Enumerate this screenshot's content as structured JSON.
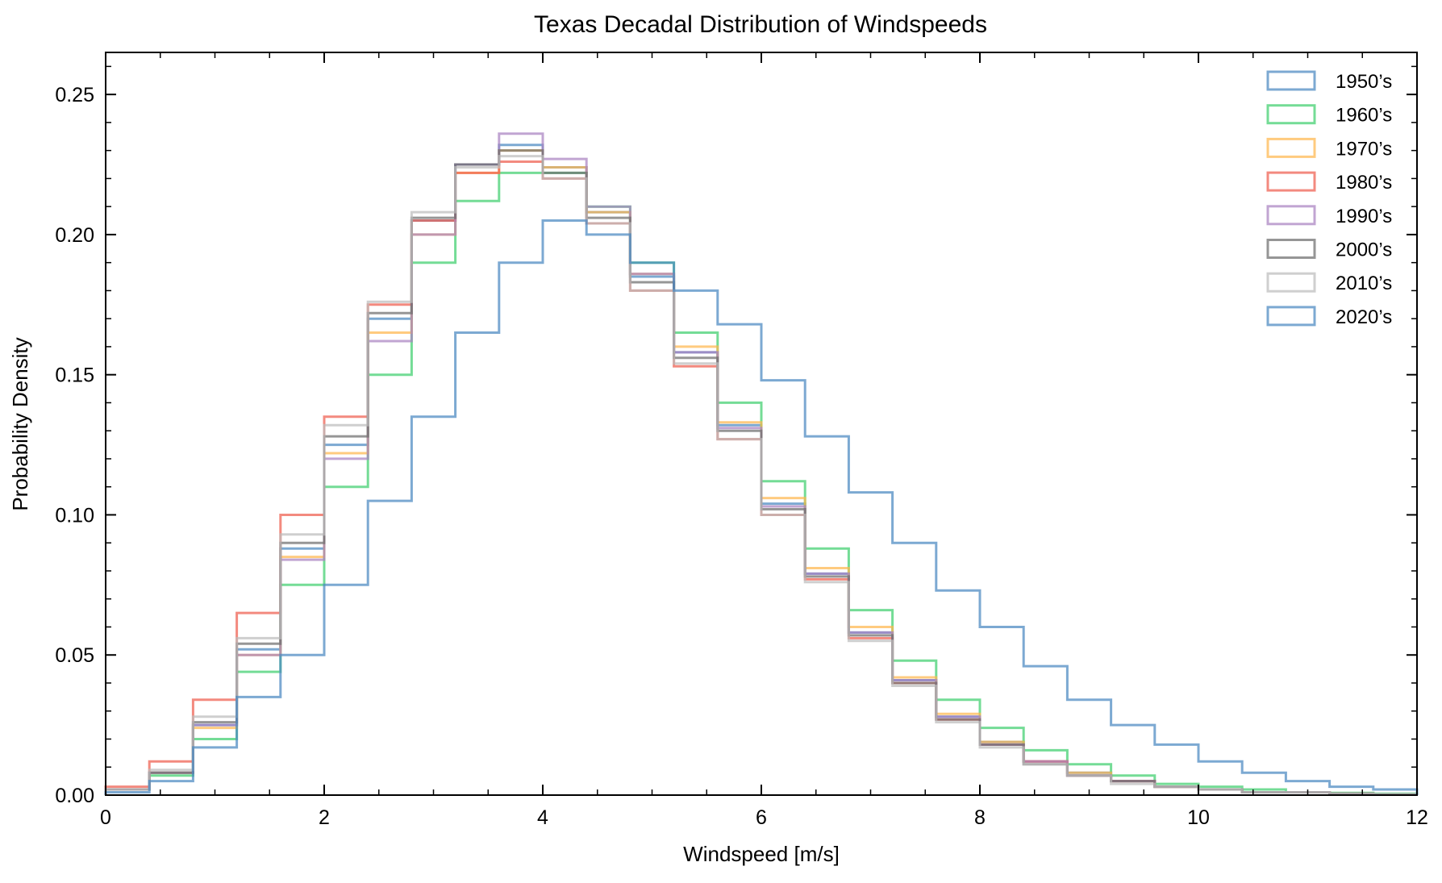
{
  "chart_data": {
    "type": "histogram",
    "title": "Texas Decadal Distribution of Windspeeds",
    "xlabel": "Windspeed [m/s]",
    "ylabel": "Probability Density",
    "xlim": [
      0,
      12
    ],
    "ylim": [
      0,
      0.265
    ],
    "xticks": [
      0,
      2,
      4,
      6,
      8,
      10,
      12
    ],
    "xtick_labels": [
      "0",
      "2",
      "4",
      "6",
      "8",
      "10",
      "12"
    ],
    "yticks": [
      0.0,
      0.05,
      0.1,
      0.15,
      0.2,
      0.25
    ],
    "ytick_labels": [
      "0.00",
      "0.05",
      "0.10",
      "0.15",
      "0.20",
      "0.25"
    ],
    "histtype": "step",
    "grid": false,
    "legend_position": "top-right",
    "x": [
      0.0,
      0.4,
      0.8,
      1.2,
      1.6,
      2.0,
      2.4,
      2.8,
      3.2,
      3.6,
      4.0,
      4.4,
      4.8,
      5.2,
      5.6,
      6.0,
      6.4,
      6.8,
      7.2,
      7.6,
      8.0,
      8.4,
      8.8,
      9.2,
      9.6,
      10.0,
      10.4,
      10.8,
      11.2,
      11.6,
      12.0
    ],
    "series": [
      {
        "name": "1950’s",
        "color": "#4a88c0",
        "values": [
          0.002,
          0.008,
          0.025,
          0.052,
          0.088,
          0.125,
          0.17,
          0.205,
          0.225,
          0.232,
          0.224,
          0.208,
          0.185,
          0.158,
          0.132,
          0.104,
          0.079,
          0.058,
          0.041,
          0.028,
          0.019,
          0.012,
          0.008,
          0.005,
          0.003,
          0.002,
          0.001,
          0.001,
          0.0005,
          0.0003,
          0.0002
        ]
      },
      {
        "name": "1960’s",
        "color": "#3ecf6e",
        "values": [
          0.002,
          0.007,
          0.02,
          0.044,
          0.075,
          0.11,
          0.15,
          0.19,
          0.212,
          0.222,
          0.222,
          0.21,
          0.19,
          0.165,
          0.14,
          0.112,
          0.088,
          0.066,
          0.048,
          0.034,
          0.024,
          0.016,
          0.011,
          0.007,
          0.004,
          0.003,
          0.002,
          0.001,
          0.0008,
          0.0005,
          0.0003
        ]
      },
      {
        "name": "1970’s",
        "color": "#ffb74d",
        "values": [
          0.002,
          0.008,
          0.024,
          0.05,
          0.085,
          0.122,
          0.165,
          0.2,
          0.222,
          0.23,
          0.224,
          0.208,
          0.186,
          0.16,
          0.133,
          0.106,
          0.081,
          0.06,
          0.042,
          0.029,
          0.019,
          0.012,
          0.008,
          0.005,
          0.003,
          0.002,
          0.001,
          0.001,
          0.0005,
          0.0003,
          0.0002
        ]
      },
      {
        "name": "1980’s",
        "color": "#ef5d4e",
        "values": [
          0.003,
          0.012,
          0.034,
          0.065,
          0.1,
          0.135,
          0.175,
          0.205,
          0.222,
          0.226,
          0.22,
          0.204,
          0.18,
          0.153,
          0.127,
          0.1,
          0.077,
          0.056,
          0.04,
          0.027,
          0.018,
          0.012,
          0.007,
          0.005,
          0.003,
          0.002,
          0.001,
          0.001,
          0.0005,
          0.0003,
          0.0002
        ]
      },
      {
        "name": "1990’s",
        "color": "#a982c0",
        "values": [
          0.002,
          0.008,
          0.025,
          0.05,
          0.084,
          0.12,
          0.162,
          0.2,
          0.225,
          0.236,
          0.227,
          0.21,
          0.186,
          0.158,
          0.131,
          0.103,
          0.079,
          0.058,
          0.041,
          0.028,
          0.018,
          0.012,
          0.007,
          0.005,
          0.003,
          0.002,
          0.001,
          0.001,
          0.0005,
          0.0003,
          0.0002
        ]
      },
      {
        "name": "2000’s",
        "color": "#6e6e6e",
        "values": [
          0.002,
          0.008,
          0.026,
          0.054,
          0.09,
          0.128,
          0.172,
          0.206,
          0.225,
          0.23,
          0.222,
          0.206,
          0.183,
          0.156,
          0.13,
          0.102,
          0.078,
          0.057,
          0.04,
          0.027,
          0.018,
          0.011,
          0.007,
          0.005,
          0.003,
          0.002,
          0.001,
          0.001,
          0.0005,
          0.0003,
          0.0002
        ]
      },
      {
        "name": "2010’s",
        "color": "#bdbdbd",
        "values": [
          0.002,
          0.009,
          0.028,
          0.056,
          0.093,
          0.132,
          0.176,
          0.208,
          0.224,
          0.228,
          0.22,
          0.204,
          0.18,
          0.154,
          0.127,
          0.1,
          0.076,
          0.055,
          0.039,
          0.026,
          0.017,
          0.011,
          0.007,
          0.004,
          0.003,
          0.002,
          0.001,
          0.001,
          0.0005,
          0.0003,
          0.0002
        ]
      },
      {
        "name": "2020’s",
        "color": "#4a88c0",
        "values": [
          0.001,
          0.005,
          0.017,
          0.035,
          0.05,
          0.075,
          0.105,
          0.135,
          0.165,
          0.19,
          0.205,
          0.2,
          0.19,
          0.18,
          0.168,
          0.148,
          0.128,
          0.108,
          0.09,
          0.073,
          0.06,
          0.046,
          0.034,
          0.025,
          0.018,
          0.012,
          0.008,
          0.005,
          0.003,
          0.002,
          0.001
        ]
      }
    ]
  }
}
